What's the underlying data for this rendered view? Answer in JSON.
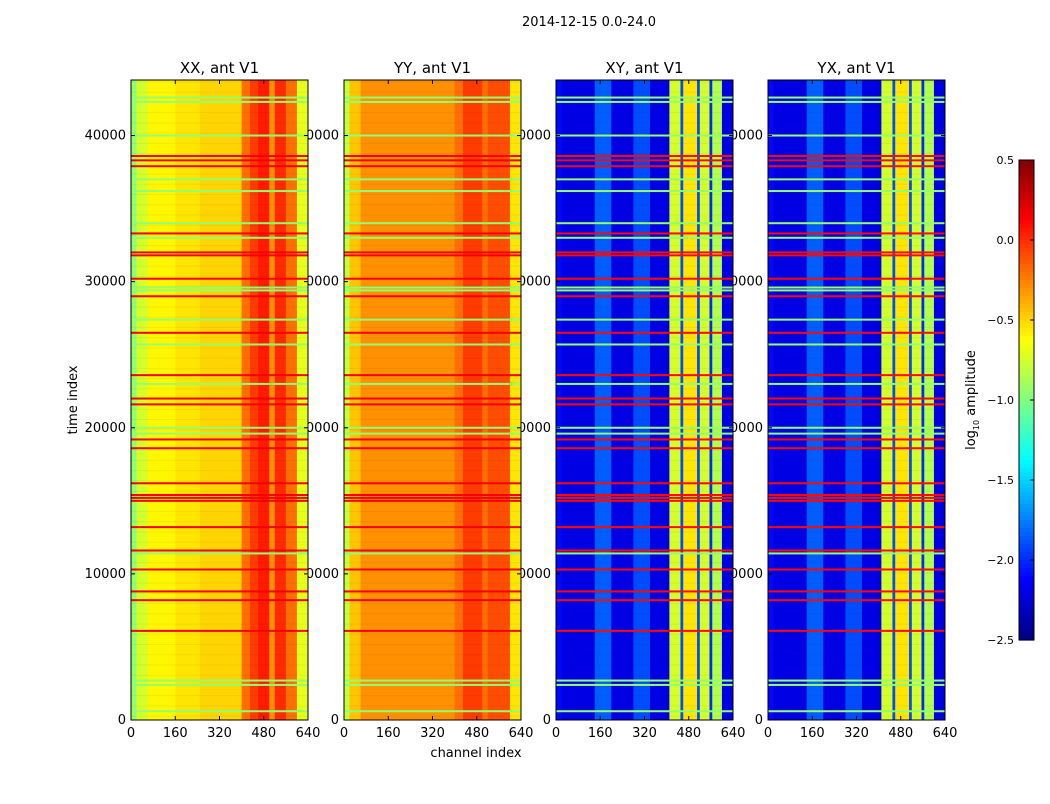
{
  "chart_data": {
    "type": "heatmap",
    "suptitle": "2014-12-15 0.0-24.0",
    "xlabel": "channel index",
    "ylabel": "time index",
    "xlim": [
      0,
      640
    ],
    "ylim": [
      0,
      43800
    ],
    "xticks": [
      "0",
      "160",
      "320",
      "480",
      "640"
    ],
    "xtick_values": [
      0,
      160,
      320,
      480,
      640
    ],
    "yticks": [
      "0",
      "10000",
      "20000",
      "30000",
      "40000"
    ],
    "ytick_values": [
      0,
      10000,
      20000,
      30000,
      40000
    ],
    "colorbar": {
      "label": "log",
      "label_sub": "10",
      "label_rest": " amplitude",
      "range": [
        -2.5,
        0.5
      ],
      "ticks": [
        "0.5",
        "0.0",
        "−0.5",
        "−1.0",
        "−1.5",
        "−2.0",
        "−2.5"
      ],
      "tick_values": [
        0.5,
        0.0,
        -0.5,
        -1.0,
        -1.5,
        -2.0,
        -2.5
      ],
      "colormap": "jet"
    },
    "panels": [
      {
        "title": "XX, ant V1",
        "column_profile": [
          [
            0,
            20,
            -0.95
          ],
          [
            20,
            60,
            -0.75
          ],
          [
            60,
            160,
            -0.6
          ],
          [
            160,
            250,
            -0.55
          ],
          [
            250,
            400,
            -0.5
          ],
          [
            400,
            430,
            -0.2
          ],
          [
            430,
            460,
            -0.05
          ],
          [
            460,
            500,
            0.05
          ],
          [
            500,
            520,
            -0.3
          ],
          [
            520,
            560,
            0.0
          ],
          [
            560,
            600,
            -0.2
          ],
          [
            600,
            640,
            -0.7
          ]
        ],
        "flag_value": 0.15,
        "green_value": -0.95
      },
      {
        "title": "YY, ant V1",
        "column_profile": [
          [
            0,
            20,
            -0.8
          ],
          [
            20,
            60,
            -0.45
          ],
          [
            60,
            400,
            -0.3
          ],
          [
            400,
            430,
            -0.2
          ],
          [
            430,
            500,
            -0.05
          ],
          [
            500,
            520,
            -0.2
          ],
          [
            520,
            600,
            -0.1
          ],
          [
            600,
            640,
            -0.55
          ]
        ],
        "flag_value": 0.15,
        "green_value": -0.95
      },
      {
        "title": "XY, ant V1",
        "column_profile": [
          [
            0,
            20,
            -2.1
          ],
          [
            20,
            140,
            -2.2
          ],
          [
            140,
            200,
            -1.85
          ],
          [
            200,
            280,
            -2.2
          ],
          [
            280,
            340,
            -1.9
          ],
          [
            340,
            410,
            -2.2
          ],
          [
            410,
            450,
            -0.75
          ],
          [
            450,
            460,
            -1.9
          ],
          [
            460,
            510,
            -0.55
          ],
          [
            510,
            520,
            -1.9
          ],
          [
            520,
            555,
            -0.75
          ],
          [
            555,
            565,
            -2.0
          ],
          [
            565,
            600,
            -0.85
          ],
          [
            600,
            640,
            -2.2
          ]
        ],
        "flag_value": 0.1,
        "green_value": -0.95
      },
      {
        "title": "YX, ant V1",
        "column_profile": [
          [
            0,
            20,
            -2.1
          ],
          [
            20,
            140,
            -2.2
          ],
          [
            140,
            200,
            -1.85
          ],
          [
            200,
            280,
            -2.2
          ],
          [
            280,
            340,
            -1.9
          ],
          [
            340,
            410,
            -2.2
          ],
          [
            410,
            450,
            -0.75
          ],
          [
            450,
            460,
            -1.9
          ],
          [
            460,
            510,
            -0.55
          ],
          [
            510,
            520,
            -1.9
          ],
          [
            520,
            555,
            -0.75
          ],
          [
            555,
            565,
            -2.0
          ],
          [
            565,
            600,
            -0.85
          ],
          [
            600,
            640,
            -2.2
          ]
        ],
        "flag_value": 0.1,
        "green_value": -0.95
      }
    ],
    "flagged_times_high": [
      38600,
      38300,
      37900,
      33300,
      32000,
      31800,
      30200,
      29000,
      26500,
      23600,
      22000,
      21600,
      19200,
      18600,
      16200,
      15400,
      15200,
      15000,
      13200,
      11600,
      10300,
      8800,
      8200,
      6100
    ],
    "flagged_times_low": [
      42600,
      42300,
      40000,
      37000,
      36200,
      34000,
      33000,
      29600,
      29400,
      27400,
      25700,
      23000,
      20000,
      19600,
      11400,
      2700,
      2400,
      600
    ]
  }
}
